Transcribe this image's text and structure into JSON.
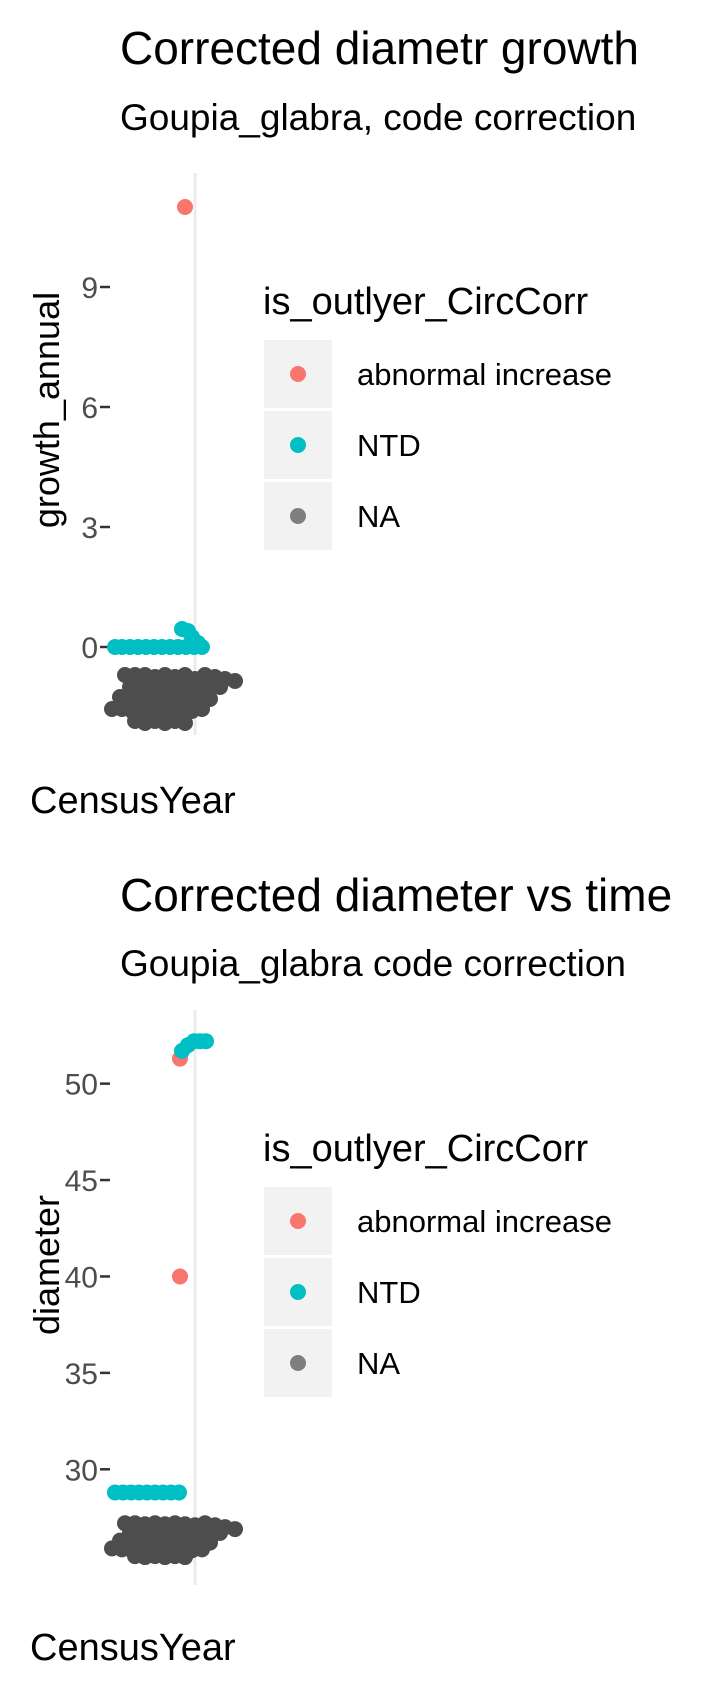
{
  "chart_data": [
    {
      "type": "scatter",
      "title": "Corrected diametr growth",
      "subtitle": "Goupia_glabra, code correction",
      "xlabel": "CensusYear",
      "ylabel": "growth_annual",
      "yticks": [
        0,
        3,
        6,
        9
      ],
      "ylim": [
        -2.2,
        11.6
      ],
      "grid": true,
      "legend": {
        "title": "is_outlyer_CircCorr",
        "placement": "right",
        "entries": [
          {
            "label": "abnormal increase",
            "color": "#F8766D"
          },
          {
            "label": "NTD",
            "color": "#00BFC4"
          },
          {
            "label": "NA",
            "color": "#7F7F7F"
          }
        ]
      },
      "series": [
        {
          "name": "abnormal increase",
          "color": "#F8766D",
          "points": [
            [
              0.75,
              11.0
            ]
          ]
        },
        {
          "name": "NTD",
          "color": "#00BFC4",
          "points": [
            [
              0.05,
              0.0
            ],
            [
              0.12,
              0.0
            ],
            [
              0.2,
              0.0
            ],
            [
              0.28,
              0.0
            ],
            [
              0.36,
              0.0
            ],
            [
              0.44,
              0.0
            ],
            [
              0.52,
              0.0
            ],
            [
              0.6,
              0.0
            ],
            [
              0.68,
              0.0
            ],
            [
              0.76,
              0.0
            ],
            [
              0.84,
              0.0
            ],
            [
              0.92,
              0.0
            ],
            [
              0.72,
              0.45
            ],
            [
              0.78,
              0.4
            ],
            [
              0.82,
              0.25
            ],
            [
              0.88,
              0.1
            ]
          ]
        },
        {
          "name": "NA",
          "color": "#4D4D4D",
          "points": [
            [
              0.15,
              -0.7
            ],
            [
              0.25,
              -0.7
            ],
            [
              0.35,
              -0.7
            ],
            [
              0.45,
              -0.75
            ],
            [
              0.55,
              -0.7
            ],
            [
              0.65,
              -0.75
            ],
            [
              0.75,
              -0.7
            ],
            [
              0.85,
              -0.8
            ],
            [
              0.95,
              -0.7
            ],
            [
              1.05,
              -0.75
            ],
            [
              1.15,
              -0.8
            ],
            [
              1.25,
              -0.85
            ],
            [
              0.2,
              -1.0
            ],
            [
              0.3,
              -1.0
            ],
            [
              0.4,
              -1.05
            ],
            [
              0.5,
              -1.0
            ],
            [
              0.6,
              -1.05
            ],
            [
              0.7,
              -1.0
            ],
            [
              0.8,
              -1.05
            ],
            [
              0.9,
              -1.0
            ],
            [
              1.0,
              -1.05
            ],
            [
              1.1,
              -1.0
            ],
            [
              0.1,
              -1.25
            ],
            [
              0.2,
              -1.3
            ],
            [
              0.3,
              -1.25
            ],
            [
              0.4,
              -1.3
            ],
            [
              0.5,
              -1.25
            ],
            [
              0.6,
              -1.3
            ],
            [
              0.7,
              -1.25
            ],
            [
              0.8,
              -1.3
            ],
            [
              0.9,
              -1.25
            ],
            [
              1.0,
              -1.3
            ],
            [
              0.02,
              -1.55
            ],
            [
              0.12,
              -1.55
            ],
            [
              0.22,
              -1.6
            ],
            [
              0.32,
              -1.55
            ],
            [
              0.42,
              -1.6
            ],
            [
              0.52,
              -1.55
            ],
            [
              0.62,
              -1.6
            ],
            [
              0.72,
              -1.55
            ],
            [
              0.82,
              -1.6
            ],
            [
              0.92,
              -1.55
            ],
            [
              0.25,
              -1.85
            ],
            [
              0.35,
              -1.9
            ],
            [
              0.45,
              -1.85
            ],
            [
              0.55,
              -1.9
            ],
            [
              0.65,
              -1.85
            ],
            [
              0.75,
              -1.9
            ]
          ]
        }
      ]
    },
    {
      "type": "scatter",
      "title": "Corrected diameter vs time",
      "subtitle": "Goupia_glabra code correction",
      "xlabel": "CensusYear",
      "ylabel": "diameter",
      "yticks": [
        30,
        35,
        40,
        45,
        50
      ],
      "ylim": [
        24.0,
        53.3
      ],
      "grid": true,
      "legend": {
        "title": "is_outlyer_CircCorr",
        "placement": "right",
        "entries": [
          {
            "label": "abnormal increase",
            "color": "#F8766D"
          },
          {
            "label": "NTD",
            "color": "#00BFC4"
          },
          {
            "label": "NA",
            "color": "#7F7F7F"
          }
        ]
      },
      "series": [
        {
          "name": "abnormal increase",
          "color": "#F8766D",
          "points": [
            [
              0.7,
              51.3
            ],
            [
              0.7,
              40.0
            ]
          ]
        },
        {
          "name": "NTD",
          "color": "#00BFC4",
          "points": [
            [
              0.05,
              28.8
            ],
            [
              0.13,
              28.8
            ],
            [
              0.21,
              28.8
            ],
            [
              0.29,
              28.8
            ],
            [
              0.37,
              28.8
            ],
            [
              0.45,
              28.8
            ],
            [
              0.53,
              28.8
            ],
            [
              0.61,
              28.8
            ],
            [
              0.69,
              28.8
            ],
            [
              0.72,
              51.7
            ],
            [
              0.78,
              52.0
            ],
            [
              0.84,
              52.2
            ],
            [
              0.9,
              52.2
            ],
            [
              0.96,
              52.2
            ]
          ]
        },
        {
          "name": "NA",
          "color": "#4D4D4D",
          "points": [
            [
              0.15,
              27.2
            ],
            [
              0.25,
              27.2
            ],
            [
              0.35,
              27.15
            ],
            [
              0.45,
              27.2
            ],
            [
              0.55,
              27.15
            ],
            [
              0.65,
              27.2
            ],
            [
              0.75,
              27.15
            ],
            [
              0.85,
              27.1
            ],
            [
              0.95,
              27.2
            ],
            [
              1.05,
              27.1
            ],
            [
              1.15,
              27.0
            ],
            [
              1.25,
              26.9
            ],
            [
              0.2,
              26.7
            ],
            [
              0.3,
              26.7
            ],
            [
              0.4,
              26.65
            ],
            [
              0.5,
              26.7
            ],
            [
              0.6,
              26.65
            ],
            [
              0.7,
              26.7
            ],
            [
              0.8,
              26.65
            ],
            [
              0.9,
              26.7
            ],
            [
              1.0,
              26.6
            ],
            [
              1.1,
              26.7
            ],
            [
              0.1,
              26.3
            ],
            [
              0.2,
              26.2
            ],
            [
              0.3,
              26.3
            ],
            [
              0.4,
              26.2
            ],
            [
              0.5,
              26.3
            ],
            [
              0.6,
              26.2
            ],
            [
              0.7,
              26.3
            ],
            [
              0.8,
              26.2
            ],
            [
              0.9,
              26.3
            ],
            [
              1.0,
              26.2
            ],
            [
              0.02,
              25.9
            ],
            [
              0.12,
              25.85
            ],
            [
              0.22,
              25.8
            ],
            [
              0.32,
              25.85
            ],
            [
              0.42,
              25.8
            ],
            [
              0.52,
              25.85
            ],
            [
              0.62,
              25.8
            ],
            [
              0.72,
              25.85
            ],
            [
              0.82,
              25.8
            ],
            [
              0.92,
              25.85
            ],
            [
              0.25,
              25.5
            ],
            [
              0.35,
              25.45
            ],
            [
              0.45,
              25.5
            ],
            [
              0.55,
              25.45
            ],
            [
              0.65,
              25.5
            ],
            [
              0.75,
              25.45
            ]
          ]
        }
      ]
    }
  ]
}
